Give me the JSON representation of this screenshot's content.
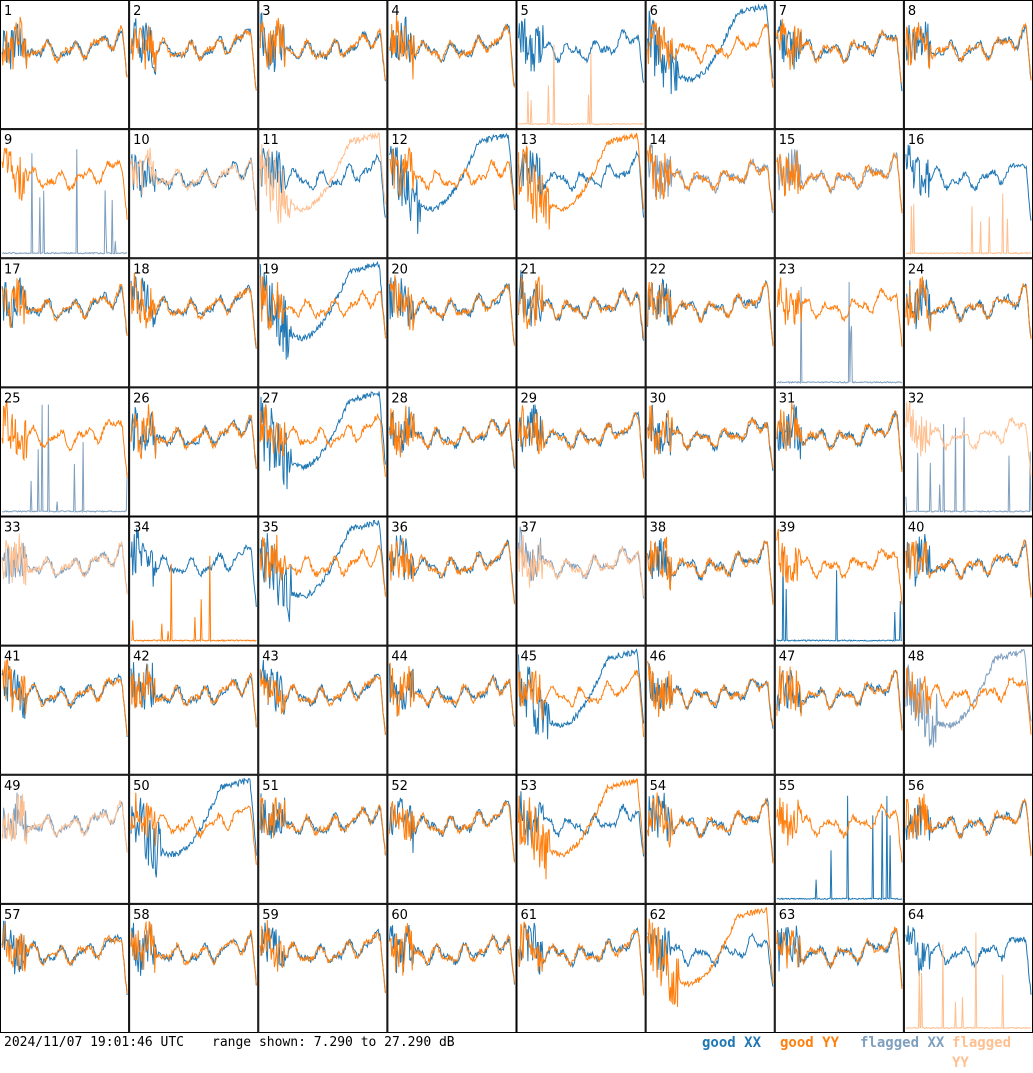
{
  "footer": {
    "timestamp": "2024/11/07 19:01:46 UTC",
    "range_text": "range shown: 7.290 to 27.290 dB"
  },
  "legend": [
    {
      "label": "good",
      "pol": "XX",
      "color": "#1f77b4"
    },
    {
      "label": "good",
      "pol": "YY",
      "color": "#ff7f0e"
    },
    {
      "label": "flagged",
      "pol": "XX",
      "color": "#7f9fbf"
    },
    {
      "label": "flagged",
      "pol": "YY",
      "color": "#ffbf8f"
    }
  ],
  "colors": {
    "good_xx": "#1f77b4",
    "good_yy": "#ff7f0e",
    "flagged_xx": "#7f9fbf",
    "flagged_yy": "#ffbf8f"
  },
  "chart_data": {
    "type": "line",
    "ylim": [
      7.29,
      27.29
    ],
    "units": "dB",
    "panels": [
      {
        "id": "1",
        "xx": "good",
        "yy": "good",
        "xx_profile": "normal",
        "yy_profile": "normal"
      },
      {
        "id": "2",
        "xx": "good",
        "yy": "good",
        "xx_profile": "normal",
        "yy_profile": "normal"
      },
      {
        "id": "3",
        "xx": "good",
        "yy": "good",
        "xx_profile": "normal",
        "yy_profile": "normal"
      },
      {
        "id": "4",
        "xx": "good",
        "yy": "good",
        "xx_profile": "normal",
        "yy_profile": "normal"
      },
      {
        "id": "5",
        "xx": "good",
        "yy": "flagged",
        "xx_profile": "normal",
        "yy_profile": "dead"
      },
      {
        "id": "6",
        "xx": "good",
        "yy": "good",
        "xx_profile": "low",
        "yy_profile": "normal"
      },
      {
        "id": "7",
        "xx": "good",
        "yy": "good",
        "xx_profile": "normal",
        "yy_profile": "normal"
      },
      {
        "id": "8",
        "xx": "good",
        "yy": "good",
        "xx_profile": "normal",
        "yy_profile": "normal"
      },
      {
        "id": "9",
        "xx": "flagged",
        "yy": "good",
        "xx_profile": "dead",
        "yy_profile": "normal"
      },
      {
        "id": "10",
        "xx": "good",
        "yy": "flagged",
        "xx_profile": "normal",
        "yy_profile": "normal"
      },
      {
        "id": "11",
        "xx": "good",
        "yy": "flagged",
        "xx_profile": "normal",
        "yy_profile": "low"
      },
      {
        "id": "12",
        "xx": "good",
        "yy": "good",
        "xx_profile": "low",
        "yy_profile": "normal"
      },
      {
        "id": "13",
        "xx": "good",
        "yy": "good",
        "xx_profile": "normal",
        "yy_profile": "low"
      },
      {
        "id": "14",
        "xx": "flagged",
        "yy": "good",
        "xx_profile": "normal",
        "yy_profile": "normal"
      },
      {
        "id": "15",
        "xx": "flagged",
        "yy": "good",
        "xx_profile": "normal",
        "yy_profile": "normal"
      },
      {
        "id": "16",
        "xx": "good",
        "yy": "flagged",
        "xx_profile": "normal",
        "yy_profile": "dead"
      },
      {
        "id": "17",
        "xx": "good",
        "yy": "good",
        "xx_profile": "normal",
        "yy_profile": "normal"
      },
      {
        "id": "18",
        "xx": "good",
        "yy": "good",
        "xx_profile": "normal",
        "yy_profile": "normal"
      },
      {
        "id": "19",
        "xx": "good",
        "yy": "good",
        "xx_profile": "low",
        "yy_profile": "normal"
      },
      {
        "id": "20",
        "xx": "good",
        "yy": "good",
        "xx_profile": "normal",
        "yy_profile": "normal"
      },
      {
        "id": "21",
        "xx": "good",
        "yy": "good",
        "xx_profile": "normal",
        "yy_profile": "normal"
      },
      {
        "id": "22",
        "xx": "good",
        "yy": "good",
        "xx_profile": "normal",
        "yy_profile": "normal"
      },
      {
        "id": "23",
        "xx": "flagged",
        "yy": "good",
        "xx_profile": "dead",
        "yy_profile": "normal"
      },
      {
        "id": "24",
        "xx": "good",
        "yy": "good",
        "xx_profile": "normal",
        "yy_profile": "normal"
      },
      {
        "id": "25",
        "xx": "flagged",
        "yy": "good",
        "xx_profile": "dead",
        "yy_profile": "normal"
      },
      {
        "id": "26",
        "xx": "good",
        "yy": "good",
        "xx_profile": "normal",
        "yy_profile": "normal"
      },
      {
        "id": "27",
        "xx": "good",
        "yy": "good",
        "xx_profile": "low",
        "yy_profile": "normal"
      },
      {
        "id": "28",
        "xx": "good",
        "yy": "good",
        "xx_profile": "normal",
        "yy_profile": "normal"
      },
      {
        "id": "29",
        "xx": "good",
        "yy": "good",
        "xx_profile": "normal",
        "yy_profile": "normal"
      },
      {
        "id": "30",
        "xx": "good",
        "yy": "good",
        "xx_profile": "normal",
        "yy_profile": "normal"
      },
      {
        "id": "31",
        "xx": "good",
        "yy": "good",
        "xx_profile": "normal",
        "yy_profile": "normal"
      },
      {
        "id": "32",
        "xx": "flagged",
        "yy": "flagged",
        "xx_profile": "dead",
        "yy_profile": "normal"
      },
      {
        "id": "33",
        "xx": "flagged",
        "yy": "flagged",
        "xx_profile": "normal",
        "yy_profile": "normal"
      },
      {
        "id": "34",
        "xx": "good",
        "yy": "good",
        "xx_profile": "normal",
        "yy_profile": "dead"
      },
      {
        "id": "35",
        "xx": "good",
        "yy": "good",
        "xx_profile": "low",
        "yy_profile": "normal"
      },
      {
        "id": "36",
        "xx": "good",
        "yy": "good",
        "xx_profile": "normal",
        "yy_profile": "normal"
      },
      {
        "id": "37",
        "xx": "flagged",
        "yy": "flagged",
        "xx_profile": "normal",
        "yy_profile": "normal"
      },
      {
        "id": "38",
        "xx": "good",
        "yy": "good",
        "xx_profile": "normal",
        "yy_profile": "normal"
      },
      {
        "id": "39",
        "xx": "good",
        "yy": "good",
        "xx_profile": "dead",
        "yy_profile": "normal"
      },
      {
        "id": "40",
        "xx": "good",
        "yy": "good",
        "xx_profile": "normal",
        "yy_profile": "normal"
      },
      {
        "id": "41",
        "xx": "good",
        "yy": "good",
        "xx_profile": "normal",
        "yy_profile": "normal"
      },
      {
        "id": "42",
        "xx": "good",
        "yy": "good",
        "xx_profile": "normal",
        "yy_profile": "normal"
      },
      {
        "id": "43",
        "xx": "good",
        "yy": "good",
        "xx_profile": "normal",
        "yy_profile": "normal"
      },
      {
        "id": "44",
        "xx": "good",
        "yy": "good",
        "xx_profile": "normal",
        "yy_profile": "normal"
      },
      {
        "id": "45",
        "xx": "good",
        "yy": "good",
        "xx_profile": "low",
        "yy_profile": "normal"
      },
      {
        "id": "46",
        "xx": "good",
        "yy": "good",
        "xx_profile": "normal",
        "yy_profile": "normal"
      },
      {
        "id": "47",
        "xx": "good",
        "yy": "good",
        "xx_profile": "normal",
        "yy_profile": "normal"
      },
      {
        "id": "48",
        "xx": "flagged",
        "yy": "good",
        "xx_profile": "low",
        "yy_profile": "normal"
      },
      {
        "id": "49",
        "xx": "flagged",
        "yy": "flagged",
        "xx_profile": "normal",
        "yy_profile": "normal"
      },
      {
        "id": "50",
        "xx": "good",
        "yy": "good",
        "xx_profile": "low",
        "yy_profile": "normal"
      },
      {
        "id": "51",
        "xx": "good",
        "yy": "good",
        "xx_profile": "normal",
        "yy_profile": "normal"
      },
      {
        "id": "52",
        "xx": "good",
        "yy": "good",
        "xx_profile": "normal",
        "yy_profile": "normal"
      },
      {
        "id": "53",
        "xx": "good",
        "yy": "good",
        "xx_profile": "normal",
        "yy_profile": "low"
      },
      {
        "id": "54",
        "xx": "good",
        "yy": "good",
        "xx_profile": "normal",
        "yy_profile": "normal"
      },
      {
        "id": "55",
        "xx": "good",
        "yy": "good",
        "xx_profile": "dead",
        "yy_profile": "normal"
      },
      {
        "id": "56",
        "xx": "good",
        "yy": "good",
        "xx_profile": "normal",
        "yy_profile": "normal"
      },
      {
        "id": "57",
        "xx": "good",
        "yy": "good",
        "xx_profile": "normal",
        "yy_profile": "normal"
      },
      {
        "id": "58",
        "xx": "good",
        "yy": "good",
        "xx_profile": "normal",
        "yy_profile": "normal"
      },
      {
        "id": "59",
        "xx": "good",
        "yy": "good",
        "xx_profile": "normal",
        "yy_profile": "normal"
      },
      {
        "id": "60",
        "xx": "good",
        "yy": "good",
        "xx_profile": "normal",
        "yy_profile": "normal"
      },
      {
        "id": "61",
        "xx": "good",
        "yy": "good",
        "xx_profile": "normal",
        "yy_profile": "normal"
      },
      {
        "id": "62",
        "xx": "good",
        "yy": "good",
        "xx_profile": "normal",
        "yy_profile": "low"
      },
      {
        "id": "63",
        "xx": "good",
        "yy": "good",
        "xx_profile": "normal",
        "yy_profile": "normal"
      },
      {
        "id": "64",
        "xx": "good",
        "yy": "flagged",
        "xx_profile": "normal",
        "yy_profile": "dead"
      }
    ]
  }
}
